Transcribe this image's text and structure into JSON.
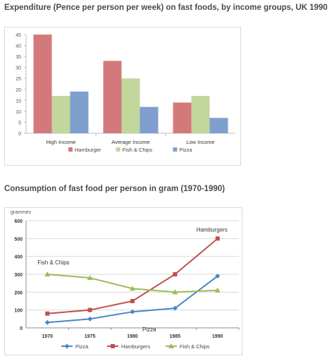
{
  "chart_data": [
    {
      "type": "bar",
      "title": "Expenditure (Pence per person per week) on fast foods, by income groups, UK 1990",
      "categories": [
        "High Income",
        "Average Income",
        "Low Income"
      ],
      "series": [
        {
          "name": "Hamburger",
          "color": "#d4797b",
          "values": [
            45,
            33,
            14
          ]
        },
        {
          "name": "Fish & Chips",
          "color": "#c3d69b",
          "values": [
            17,
            25,
            17
          ]
        },
        {
          "name": "Pizza",
          "color": "#7f9fcf",
          "values": [
            19,
            12,
            7
          ]
        }
      ],
      "ylim": [
        0,
        45
      ],
      "yticks": [
        0,
        5,
        10,
        15,
        20,
        25,
        30,
        35,
        40,
        45
      ],
      "grid": false,
      "legend": "bottom"
    },
    {
      "type": "line",
      "title": "Consumption of fast food per person in gram (1970-1990)",
      "ylabel": "grammes",
      "x": [
        1970,
        1975,
        1980,
        1985,
        1990
      ],
      "series": [
        {
          "name": "Pizza",
          "color": "#4a86c5",
          "marker": "diamond",
          "values": [
            30,
            50,
            90,
            110,
            290
          ],
          "label": "Pizza"
        },
        {
          "name": "Hamburgers",
          "color": "#c0504d",
          "marker": "square",
          "values": [
            80,
            100,
            150,
            300,
            500
          ],
          "label": "Hamburgers"
        },
        {
          "name": "Fish & Chips",
          "color": "#9bbb59",
          "marker": "triangle",
          "values": [
            300,
            280,
            220,
            200,
            210
          ],
          "label": "Fish & Chips"
        }
      ],
      "ylim": [
        0,
        600
      ],
      "yticks": [
        0,
        100,
        200,
        300,
        400,
        500,
        600
      ],
      "grid": true,
      "legend": "bottom"
    }
  ]
}
